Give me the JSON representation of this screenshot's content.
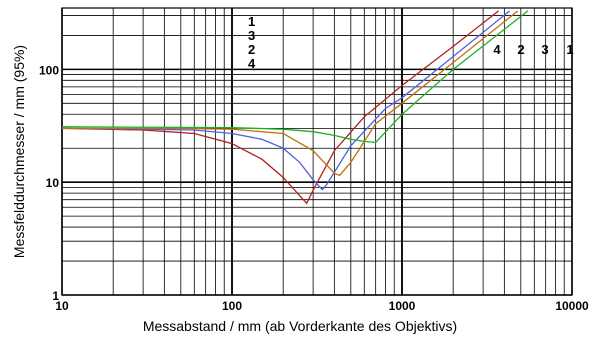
{
  "chart_data": {
    "type": "line",
    "xlabel": "Messabstand / mm (ab Vorderkante des Objektivs)",
    "ylabel": "Messfelddurchmesser / mm (95%)",
    "x_scale": "log",
    "y_scale": "log",
    "xlim": [
      10,
      10000
    ],
    "ylim": [
      1,
      350
    ],
    "grid": true,
    "x_ticks": [
      "10",
      "100",
      "1000",
      "10000"
    ],
    "y_ticks": [
      "1",
      "10",
      "100"
    ],
    "series": [
      {
        "color": "#b02020",
        "x": [
          10,
          30,
          60,
          100,
          150,
          200,
          250,
          275,
          300,
          400,
          600,
          1000,
          2000,
          3700
        ],
        "y": [
          30,
          29,
          27,
          22,
          16,
          11,
          7.6,
          6.5,
          8.5,
          19,
          38,
          72,
          160,
          330
        ]
      },
      {
        "color": "#5060e0",
        "x": [
          10,
          30,
          60,
          100,
          150,
          200,
          250,
          300,
          340,
          360,
          500,
          800,
          1000,
          2000,
          4300
        ],
        "y": [
          30,
          29.5,
          29,
          27,
          24,
          20,
          15,
          10.5,
          8.6,
          9.5,
          21,
          45,
          56,
          130,
          330
        ]
      },
      {
        "color": "#c07010",
        "x": [
          10,
          50,
          100,
          200,
          300,
          400,
          430,
          500,
          700,
          1000,
          2000,
          4800
        ],
        "y": [
          30,
          30,
          29.5,
          27,
          19,
          12,
          11.5,
          15,
          33,
          50,
          115,
          330
        ]
      },
      {
        "color": "#20b020",
        "x": [
          10,
          100,
          200,
          300,
          400,
          500,
          600,
          700,
          1000,
          2000,
          5500
        ],
        "y": [
          31,
          30.5,
          29.5,
          28,
          26,
          24,
          23,
          22.5,
          40,
          100,
          330
        ]
      }
    ],
    "annotations_left": [
      "1",
      "3",
      "2",
      "4"
    ],
    "annotations_right": [
      "4",
      "2",
      "3",
      "1"
    ]
  }
}
